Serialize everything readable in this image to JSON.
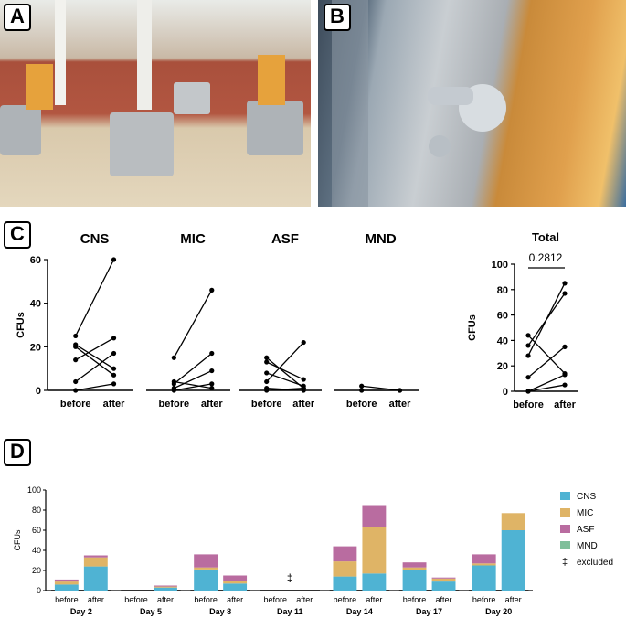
{
  "panels": {
    "a": "A",
    "b": "B",
    "c": "C",
    "d": "D"
  },
  "colors": {
    "CNS": "#4fb3d3",
    "MIC": "#dfb466",
    "ASF": "#b96ca0",
    "MND": "#7fbf9a"
  },
  "chart_data": [
    {
      "type": "scatter",
      "title": "CNS",
      "categories": [
        "before",
        "after"
      ],
      "ylabel": "CFUs",
      "ylim": [
        0,
        60
      ],
      "yticks": [
        "0",
        "20",
        "40",
        "60"
      ],
      "pairs": [
        [
          25,
          60
        ],
        [
          21,
          10
        ],
        [
          20,
          7
        ],
        [
          14,
          24
        ],
        [
          4,
          17
        ],
        [
          0,
          3
        ]
      ]
    },
    {
      "type": "scatter",
      "title": "MIC",
      "categories": [
        "before",
        "after"
      ],
      "ylim": [
        0,
        60
      ],
      "pairs": [
        [
          15,
          46
        ],
        [
          4,
          1
        ],
        [
          3,
          17
        ],
        [
          1,
          9
        ],
        [
          0,
          3
        ]
      ]
    },
    {
      "type": "scatter",
      "title": "ASF",
      "categories": [
        "before",
        "after"
      ],
      "ylim": [
        0,
        60
      ],
      "pairs": [
        [
          15,
          1
        ],
        [
          13,
          5
        ],
        [
          8,
          2
        ],
        [
          4,
          22
        ],
        [
          1,
          0
        ],
        [
          0,
          1
        ]
      ]
    },
    {
      "type": "scatter",
      "title": "MND",
      "categories": [
        "before",
        "after"
      ],
      "ylim": [
        0,
        60
      ],
      "pairs": [
        [
          2,
          0
        ],
        [
          0,
          0
        ]
      ]
    },
    {
      "type": "scatter",
      "title": "Total",
      "categories": [
        "before",
        "after"
      ],
      "ylabel": "CFUs",
      "ylim": [
        0,
        100
      ],
      "yticks": [
        "0",
        "20",
        "40",
        "60",
        "80",
        "100"
      ],
      "pvalue": "0.2812",
      "pairs": [
        [
          44,
          14
        ],
        [
          36,
          77
        ],
        [
          28,
          85
        ],
        [
          11,
          35
        ],
        [
          0,
          5
        ],
        [
          0,
          13
        ]
      ]
    },
    {
      "type": "bar",
      "stacked": true,
      "ylabel": "CFUs",
      "ylim": [
        0,
        100
      ],
      "yticks": [
        "0",
        "20",
        "40",
        "60",
        "80",
        "100"
      ],
      "days": [
        "Day 2",
        "Day 5",
        "Day 8",
        "Day 11",
        "Day 14",
        "Day 17",
        "Day 20"
      ],
      "subcategories": [
        "before",
        "after"
      ],
      "excluded_symbol": "‡",
      "excluded_day": "Day 11",
      "series": [
        {
          "name": "CNS",
          "values": [
            [
              6,
              24
            ],
            [
              0,
              3
            ],
            [
              21,
              7
            ],
            [
              0,
              0
            ],
            [
              14,
              17
            ],
            [
              20,
              9
            ],
            [
              25,
              60
            ]
          ]
        },
        {
          "name": "MIC",
          "values": [
            [
              3,
              9
            ],
            [
              0,
              1
            ],
            [
              2,
              3
            ],
            [
              0,
              0
            ],
            [
              15,
              46
            ],
            [
              3,
              3
            ],
            [
              2,
              17
            ]
          ]
        },
        {
          "name": "ASF",
          "values": [
            [
              2,
              2
            ],
            [
              0,
              1
            ],
            [
              13,
              5
            ],
            [
              0,
              0
            ],
            [
              15,
              22
            ],
            [
              5,
              1
            ],
            [
              9,
              0
            ]
          ]
        },
        {
          "name": "MND",
          "values": [
            [
              0,
              0
            ],
            [
              0,
              0
            ],
            [
              0,
              0
            ],
            [
              0,
              0
            ],
            [
              0,
              0
            ],
            [
              0,
              0
            ],
            [
              0,
              0
            ]
          ]
        }
      ],
      "legend": [
        "CNS",
        "MIC",
        "ASF",
        "MND",
        "excluded"
      ],
      "legend_position": "right"
    }
  ]
}
